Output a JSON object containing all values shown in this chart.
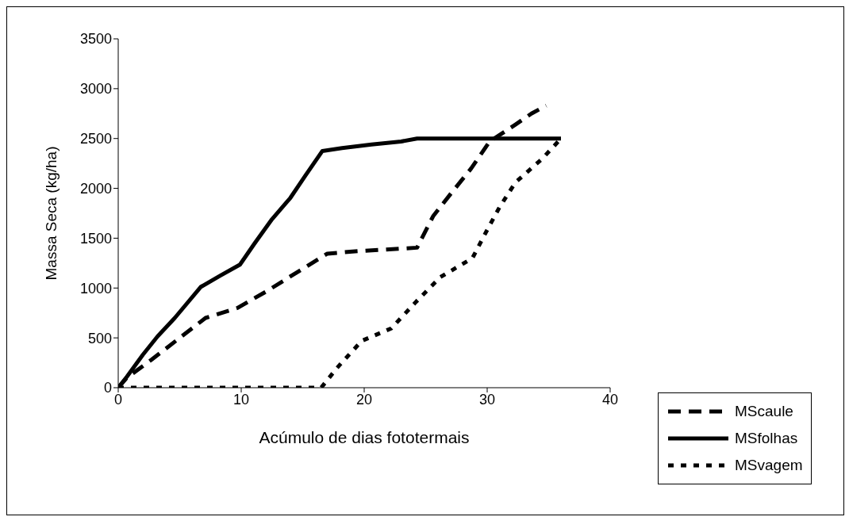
{
  "chart_data": {
    "type": "line",
    "xlabel": "Acúmulo de dias fototermais",
    "ylabel": "Massa Seca (kg/ha)",
    "xlim": [
      0,
      40
    ],
    "xticks": [
      0,
      10,
      20,
      30,
      40
    ],
    "ylim": [
      0,
      3500
    ],
    "yticks": [
      0,
      500,
      1000,
      1500,
      2000,
      2500,
      3000,
      3500
    ],
    "grid": false,
    "legend": "bottom right",
    "marker": "none",
    "series": [
      {
        "name": "MScaule",
        "color": "#000000",
        "line_style": "dashed",
        "x": [
          0,
          0.7,
          2.7,
          5,
          7.1,
          9.7,
          12.1,
          14.5,
          17,
          19.5,
          24.3,
          25.6,
          27,
          28.7,
          30.2,
          32.3,
          33.6,
          34.8
        ],
        "values": [
          0,
          100,
          280,
          500,
          700,
          800,
          970,
          1155,
          1345,
          1370,
          1405,
          1720,
          1940,
          2200,
          2470,
          2640,
          2750,
          2830
        ]
      },
      {
        "name": "MSfolhas",
        "color": "#000000",
        "line_style": "solid",
        "x": [
          0,
          0.7,
          2,
          3.2,
          4.6,
          6.7,
          8.3,
          9.9,
          11.1,
          12.5,
          14,
          15.2,
          16.6,
          18.2,
          20.6,
          23,
          24.3,
          36
        ],
        "values": [
          0,
          110,
          330,
          515,
          700,
          1010,
          1125,
          1235,
          1450,
          1690,
          1905,
          2125,
          2375,
          2405,
          2440,
          2470,
          2500,
          2500
        ]
      },
      {
        "name": "MSvagem",
        "color": "#000000",
        "line_style": "dotted",
        "x": [
          0,
          5.5,
          11,
          16.5,
          17.8,
          19.8,
          22.2,
          24.2,
          26.2,
          28.8,
          29.9,
          31,
          32.3,
          34.5,
          36
        ],
        "values": [
          0,
          0,
          0,
          0,
          200,
          470,
          595,
          860,
          1110,
          1300,
          1560,
          1810,
          2060,
          2300,
          2500
        ]
      }
    ]
  }
}
